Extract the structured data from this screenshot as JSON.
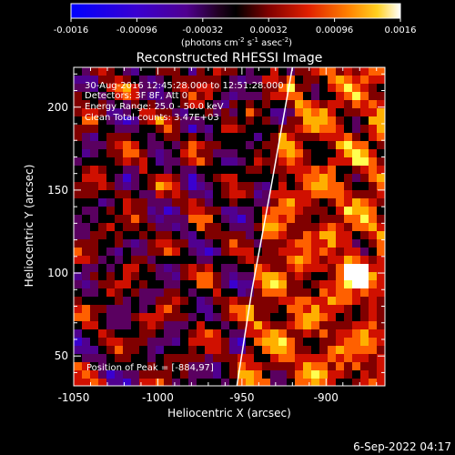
{
  "colorbar": {
    "tick_labels": [
      "-0.0016",
      "-0.00096",
      "-0.00032",
      "0.00032",
      "0.00096",
      "0.0016"
    ],
    "tick_values": [
      -0.0016,
      -0.00096,
      -0.00032,
      0.00032,
      0.00096,
      0.0016
    ],
    "range": [
      -0.0016,
      0.0016
    ],
    "unit_prefix": "(photons cm",
    "unit_exp1": "-2",
    "unit_mid": " s",
    "unit_exp2": "-1",
    "unit_mid2": " asec",
    "unit_exp3": "-2",
    "unit_suffix": ")"
  },
  "chart_data": {
    "type": "heatmap",
    "title": "Reconstructed RHESSI Image",
    "xlabel": "Heliocentric X (arcsec)",
    "ylabel": "Heliocentric Y (arcsec)",
    "xlim": [
      -1050,
      -865
    ],
    "ylim": [
      32,
      224
    ],
    "x_tick_labels": [
      "-1050",
      "-1000",
      "-950",
      "-900"
    ],
    "x_ticks": [
      -1050,
      -1000,
      -950,
      -900
    ],
    "y_tick_labels": [
      "50",
      "100",
      "150",
      "200"
    ],
    "y_ticks": [
      50,
      100,
      150,
      200
    ],
    "limb_line": [
      [
        -953,
        32
      ],
      [
        -944,
        90
      ],
      [
        -933,
        150
      ],
      [
        -920,
        224
      ]
    ],
    "peak_position": [
      -884,
      97
    ],
    "annotations": [
      "30-Aug-2016 12:45:28.000 to 12:51:28.000",
      "Detectors: 3F 8F, Att 0",
      "Energy Range: 25.0 - 50.0 keV",
      "Clean      Total counts: 3.47E+03"
    ],
    "peak_label": "Position of Peak = [-884,97]",
    "colormap": [
      "#0000ff",
      "#3a00d0",
      "#500090",
      "#5a0060",
      "#000000",
      "#800000",
      "#d01000",
      "#ff6000",
      "#ffb000",
      "#ffff50",
      "#ffffff"
    ]
  },
  "footer": {
    "timestamp": "6-Sep-2022 04:17"
  }
}
